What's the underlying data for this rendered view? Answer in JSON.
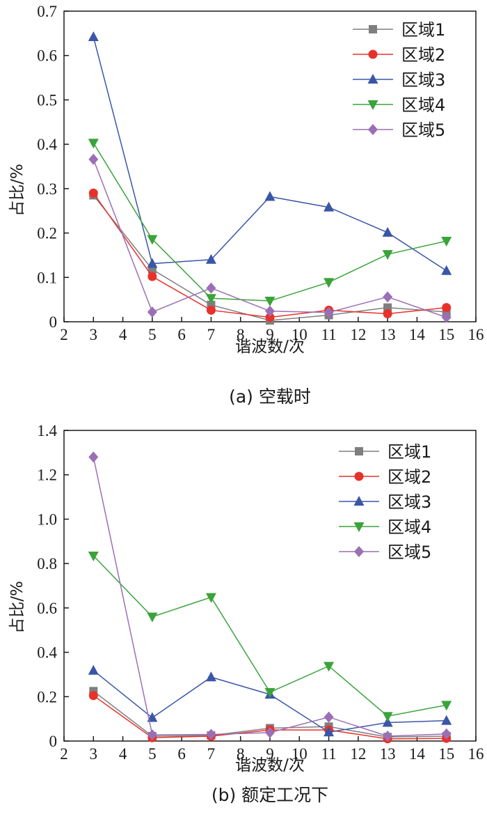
{
  "chart_data": [
    {
      "type": "line",
      "caption": "(a)  空载时",
      "xlabel": "谐波数/次",
      "ylabel": "占比/%",
      "xlim": [
        2,
        16
      ],
      "ylim": [
        0,
        0.7
      ],
      "xticks": [
        2,
        3,
        4,
        5,
        6,
        7,
        8,
        9,
        10,
        11,
        12,
        13,
        14,
        15,
        16
      ],
      "yticks": [
        0,
        0.1,
        0.2,
        0.3,
        0.4,
        0.5,
        0.6,
        0.7
      ],
      "ytick_labels": [
        "0",
        "0.1",
        "0.2",
        "0.3",
        "0.4",
        "0.5",
        "0.6",
        "0.7"
      ],
      "legend_position": "top-right",
      "x": [
        3,
        5,
        7,
        9,
        11,
        13,
        15
      ],
      "series": [
        {
          "name": "区域1",
          "marker": "square",
          "color": "#7f7f7f",
          "values": [
            0.285,
            0.118,
            0.038,
            0.003,
            0.015,
            0.032,
            0.022
          ]
        },
        {
          "name": "区域2",
          "marker": "circle",
          "color": "#e8312a",
          "values": [
            0.29,
            0.102,
            0.026,
            0.01,
            0.026,
            0.018,
            0.032
          ]
        },
        {
          "name": "区域3",
          "marker": "triangle-up",
          "color": "#3a56a6",
          "values": [
            0.642,
            0.131,
            0.14,
            0.282,
            0.258,
            0.201,
            0.115
          ]
        },
        {
          "name": "区域4",
          "marker": "triangle-down",
          "color": "#3aa33a",
          "values": [
            0.403,
            0.186,
            0.053,
            0.047,
            0.089,
            0.152,
            0.182
          ]
        },
        {
          "name": "区域5",
          "marker": "diamond",
          "color": "#9b6fb5",
          "values": [
            0.366,
            0.022,
            0.076,
            0.024,
            0.021,
            0.056,
            0.01
          ]
        }
      ]
    },
    {
      "type": "line",
      "caption": "(b)  额定工况下",
      "xlabel": "谐波数/次",
      "ylabel": "占比/%",
      "xlim": [
        2,
        16
      ],
      "ylim": [
        0,
        1.4
      ],
      "xticks": [
        2,
        3,
        4,
        5,
        6,
        7,
        8,
        9,
        10,
        11,
        12,
        13,
        14,
        15,
        16
      ],
      "yticks": [
        0,
        0.2,
        0.4,
        0.6,
        0.8,
        1.0,
        1.2,
        1.4
      ],
      "ytick_labels": [
        "0",
        "0.2",
        "0.4",
        "0.6",
        "0.8",
        "1.0",
        "1.2",
        "1.4"
      ],
      "legend_position": "top-right",
      "x": [
        3,
        5,
        7,
        9,
        11,
        13,
        15
      ],
      "series": [
        {
          "name": "区域1",
          "marker": "square",
          "color": "#7f7f7f",
          "values": [
            0.225,
            0.022,
            0.025,
            0.058,
            0.065,
            0.018,
            0.022
          ]
        },
        {
          "name": "区域2",
          "marker": "circle",
          "color": "#e8312a",
          "values": [
            0.205,
            0.015,
            0.022,
            0.05,
            0.05,
            0.01,
            0.012
          ]
        },
        {
          "name": "区域3",
          "marker": "triangle-up",
          "color": "#3a56a6",
          "values": [
            0.318,
            0.105,
            0.288,
            0.21,
            0.04,
            0.083,
            0.092
          ]
        },
        {
          "name": "区域4",
          "marker": "triangle-down",
          "color": "#3aa33a",
          "values": [
            0.835,
            0.56,
            0.648,
            0.22,
            0.338,
            0.112,
            0.162
          ]
        },
        {
          "name": "区域5",
          "marker": "diamond",
          "color": "#9b6fb5",
          "values": [
            1.28,
            0.028,
            0.03,
            0.038,
            0.108,
            0.022,
            0.032
          ]
        }
      ]
    }
  ]
}
